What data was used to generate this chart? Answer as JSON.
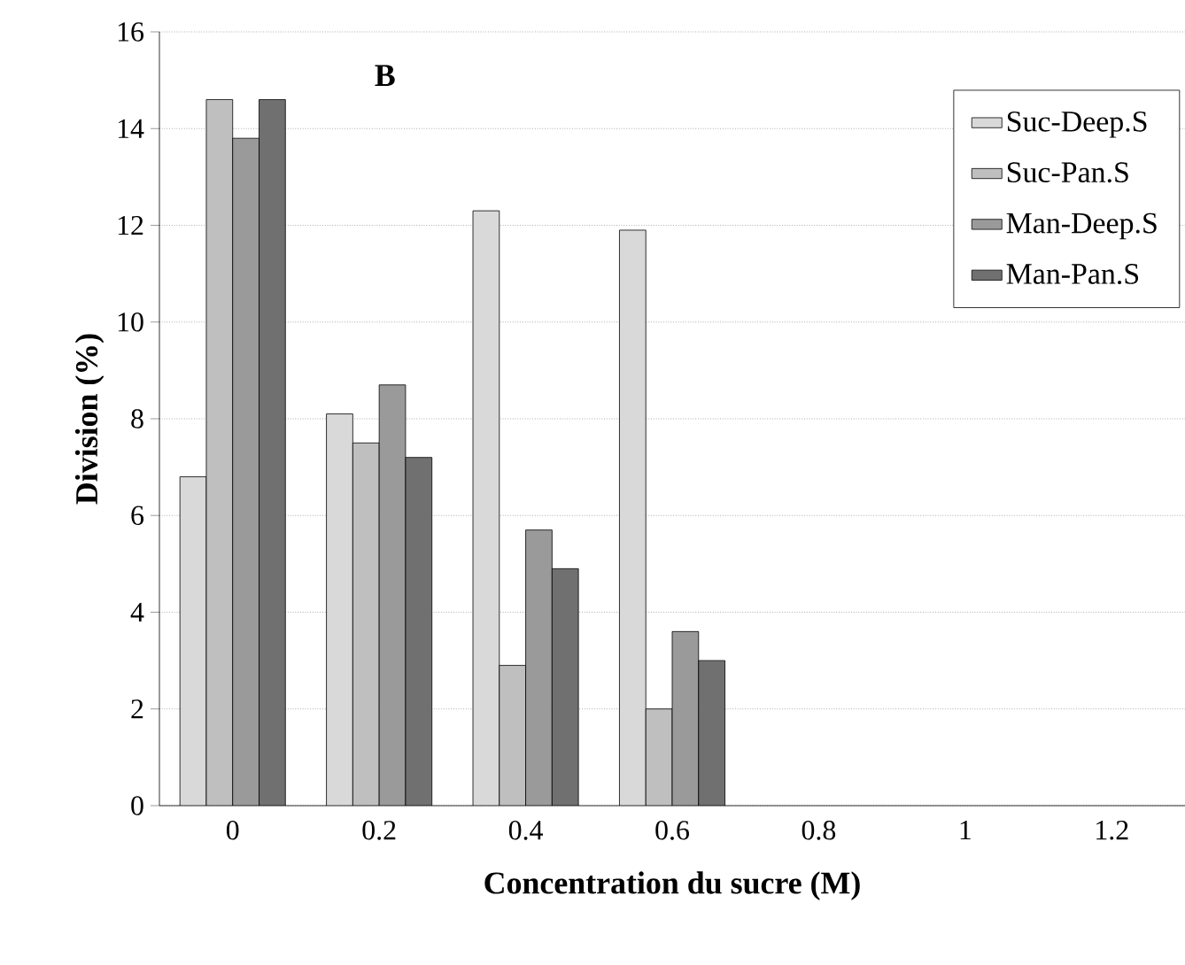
{
  "chart_data": {
    "type": "bar",
    "title": "B",
    "xlabel": "Concentration du sucre (M)",
    "ylabel": "Division (%)",
    "categories": [
      "0",
      "0.2",
      "0.4",
      "0.6",
      "0.8",
      "1",
      "1.2"
    ],
    "series": [
      {
        "name": "Suc-Deep.S",
        "color": "#d9d9d9",
        "values": [
          6.8,
          8.1,
          12.3,
          11.9,
          null,
          null,
          null
        ]
      },
      {
        "name": "Suc-Pan.S",
        "color": "#bfbfbf",
        "values": [
          14.6,
          7.5,
          2.9,
          2.0,
          null,
          null,
          null
        ]
      },
      {
        "name": "Man-Deep.S",
        "color": "#9a9a9a",
        "values": [
          13.8,
          8.7,
          5.7,
          3.6,
          null,
          null,
          null
        ]
      },
      {
        "name": "Man-Pan.S",
        "color": "#707070",
        "values": [
          14.6,
          7.2,
          4.9,
          3.0,
          null,
          null,
          null
        ]
      }
    ],
    "ylim": [
      0,
      16
    ],
    "yticks": [
      0,
      2,
      4,
      6,
      8,
      10,
      12,
      14,
      16
    ],
    "grid": "y",
    "legend": "top right"
  }
}
